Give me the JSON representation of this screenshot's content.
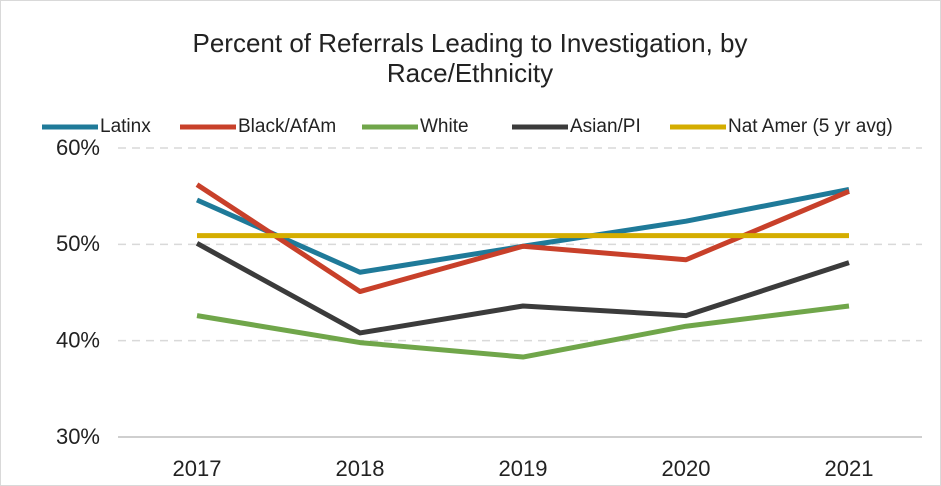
{
  "chart_data": {
    "type": "line",
    "title": "Percent of Referrals Leading to Investigation, by Race/Ethnicity",
    "categories": [
      "2017",
      "2018",
      "2019",
      "2020",
      "2021"
    ],
    "series": [
      {
        "name": "Latinx",
        "color": "#1f7a99",
        "values": [
          54.6,
          47.1,
          49.8,
          52.4,
          55.7
        ]
      },
      {
        "name": "Black/AfAm",
        "color": "#c8402a",
        "values": [
          56.2,
          45.1,
          49.8,
          48.4,
          55.5
        ]
      },
      {
        "name": "White",
        "color": "#70a64a",
        "values": [
          42.6,
          39.8,
          38.3,
          41.5,
          43.6
        ]
      },
      {
        "name": "Asian/PI",
        "color": "#3b3b3b",
        "values": [
          50.1,
          40.8,
          43.6,
          42.6,
          48.1
        ]
      },
      {
        "name": "Nat Amer (5 yr avg)",
        "color": "#d4ad00",
        "values": [
          50.9,
          50.9,
          50.9,
          50.9,
          50.9
        ]
      }
    ],
    "ylim": [
      30,
      60
    ],
    "yticks": [
      {
        "value": 30,
        "label": "30%"
      },
      {
        "value": 40,
        "label": "40%"
      },
      {
        "value": 50,
        "label": "50%"
      },
      {
        "value": 60,
        "label": "60%"
      }
    ],
    "grid": true,
    "legend": "top"
  }
}
